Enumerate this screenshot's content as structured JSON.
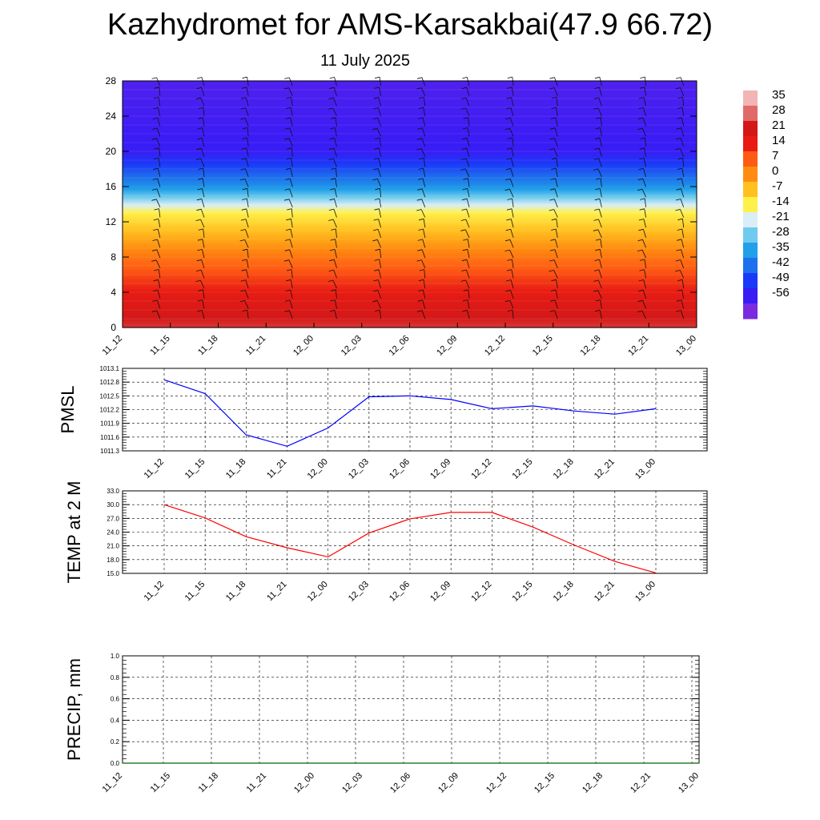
{
  "title": "Kazhydromet for AMS-Karsakbai(47.9 66.72)",
  "subtitle": "11 July 2025",
  "time_labels": [
    "11_12",
    "11_15",
    "11_18",
    "11_21",
    "12_00",
    "12_03",
    "12_06",
    "12_09",
    "12_12",
    "12_15",
    "12_18",
    "12_21",
    "13_00"
  ],
  "chart_data": [
    {
      "type": "heatmap",
      "title": "",
      "xlabel": "",
      "ylabel": "",
      "x": [
        "11_12",
        "11_15",
        "11_18",
        "11_21",
        "12_00",
        "12_03",
        "12_06",
        "12_09",
        "12_12",
        "12_15",
        "12_18",
        "12_21",
        "13_00"
      ],
      "y_ticks": [
        0,
        4,
        8,
        12,
        16,
        20,
        24,
        28
      ],
      "ylim": [
        0,
        28
      ],
      "colorbar": {
        "labels": [
          "35",
          "28",
          "21",
          "14",
          "7",
          "0",
          "-7",
          "-14",
          "-21",
          "-28",
          "-35",
          "-42",
          "-49",
          "-56"
        ],
        "range": [
          -63,
          42
        ],
        "colors": [
          "#7a2be0",
          "#3a1cf5",
          "#1b3af8",
          "#1f70ec",
          "#1fa0e8",
          "#6fcaee",
          "#d9eef6",
          "#fff14a",
          "#ffc020",
          "#ff8c10",
          "#ff5a14",
          "#e81c14",
          "#d41818",
          "#e06a6a",
          "#f2b4b4"
        ]
      },
      "temperature_profile": [
        {
          "height": 0,
          "temp": 30
        },
        {
          "height": 4,
          "temp": 20
        },
        {
          "height": 8,
          "temp": 8
        },
        {
          "height": 13,
          "temp": -10
        },
        {
          "height": 16,
          "temp": -35
        },
        {
          "height": 20,
          "temp": -55
        },
        {
          "height": 28,
          "temp": -58
        }
      ],
      "wind_barbs": true
    },
    {
      "type": "line",
      "ylabel": "PMSL",
      "x": [
        "11_12",
        "11_15",
        "11_18",
        "11_21",
        "12_00",
        "12_03",
        "12_06",
        "12_09",
        "12_12",
        "12_15",
        "12_18",
        "12_21",
        "13_00"
      ],
      "y_ticks": [
        "1011.3",
        "1011.6",
        "1011.9",
        "1012.2",
        "1012.5",
        "1012.8",
        "1013.1"
      ],
      "ylim": [
        1011.3,
        1013.1
      ],
      "series": [
        {
          "values": [
            1012.85,
            1012.55,
            1011.65,
            1011.4,
            1011.8,
            1012.48,
            1012.5,
            1012.42,
            1012.22,
            1012.28,
            1012.17,
            1012.1,
            1012.22
          ],
          "color": "#0000ff"
        }
      ]
    },
    {
      "type": "line",
      "ylabel": "TEMP at 2 M",
      "x": [
        "11_12",
        "11_15",
        "11_18",
        "11_21",
        "12_00",
        "12_03",
        "12_06",
        "12_09",
        "12_12",
        "12_15",
        "12_18",
        "12_21",
        "13_00"
      ],
      "y_ticks": [
        "15.0",
        "18.0",
        "21.0",
        "24.0",
        "27.0",
        "30.0",
        "33.0"
      ],
      "ylim": [
        15,
        33
      ],
      "series": [
        {
          "values": [
            30.0,
            27.1,
            23.0,
            20.6,
            18.6,
            23.8,
            26.9,
            28.3,
            28.3,
            25.1,
            21.2,
            17.6,
            15.1
          ],
          "color": "#ff0000"
        }
      ]
    },
    {
      "type": "line",
      "ylabel": "PRECIP, mm",
      "x": [
        "11_12",
        "11_15",
        "11_18",
        "11_21",
        "12_00",
        "12_03",
        "12_06",
        "12_09",
        "12_12",
        "12_15",
        "12_18",
        "12_21",
        "13_00"
      ],
      "y_ticks": [
        "0.0",
        "0.2",
        "0.4",
        "0.6",
        "0.8",
        "1.0"
      ],
      "ylim": [
        0,
        1
      ],
      "series": [
        {
          "values": [
            0,
            0,
            0,
            0,
            0,
            0,
            0,
            0,
            0,
            0,
            0,
            0,
            0
          ],
          "color": "#006400"
        }
      ]
    }
  ]
}
